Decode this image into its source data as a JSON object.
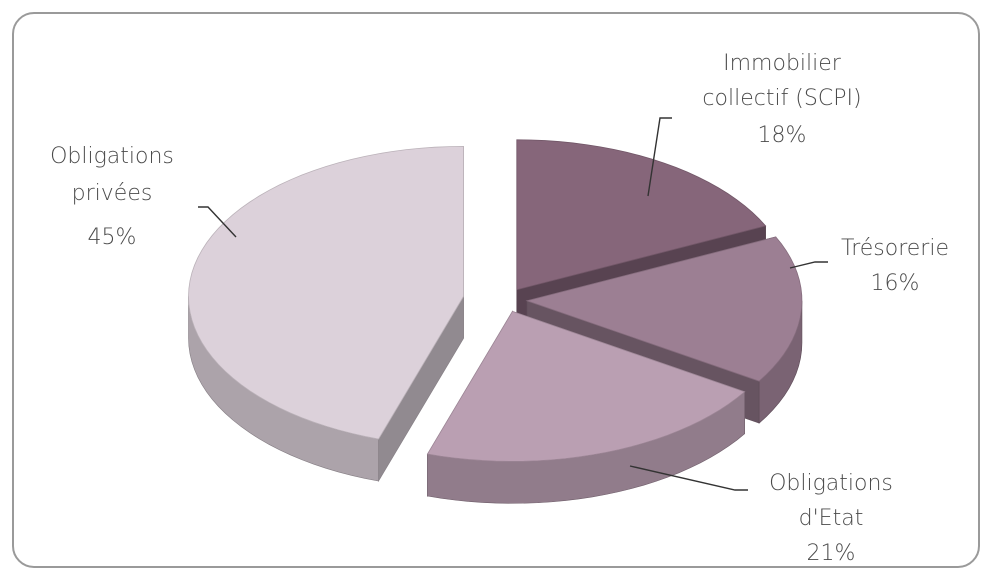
{
  "chart_data": {
    "type": "pie",
    "style": "3d-exploded",
    "slices": [
      {
        "label_lines": [
          "Immobilier",
          "collectif (SCPI)"
        ],
        "percent_text": "18%",
        "value": 18,
        "color": "#86667a"
      },
      {
        "label_lines": [
          "Trésorerie"
        ],
        "percent_text": "16%",
        "value": 16,
        "color": "#9c7f93"
      },
      {
        "label_lines": [
          "Obligations",
          "d'Etat"
        ],
        "percent_text": "21%",
        "value": 21,
        "color": "#ba9fb2"
      },
      {
        "label_lines": [
          "Obligations",
          "privées"
        ],
        "percent_text": "45%",
        "value": 45,
        "color": "#dcd1da"
      }
    ]
  }
}
